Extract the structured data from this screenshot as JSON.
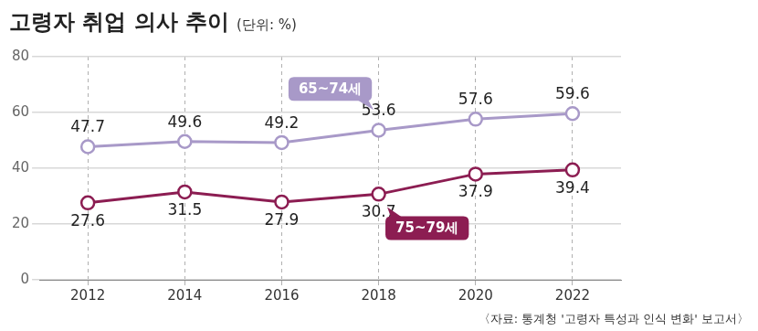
{
  "chart_data": {
    "type": "line",
    "title": "고령자 취업 의사 추이",
    "subtitle": "(단위: %)",
    "source": "〈자료: 통계청 '고령자 특성과 인식 변화' 보고서〉",
    "categories": [
      "2012",
      "2014",
      "2016",
      "2018",
      "2020",
      "2022"
    ],
    "series": [
      {
        "name": "65~74세",
        "color": "#a899c8",
        "values": [
          47.7,
          49.6,
          49.2,
          53.6,
          57.6,
          59.6
        ]
      },
      {
        "name": "75~79세",
        "color": "#8c1d52",
        "values": [
          27.6,
          31.5,
          27.9,
          30.7,
          37.9,
          39.4
        ]
      }
    ],
    "ylim": [
      0,
      80
    ],
    "yticks": [
      0,
      20,
      40,
      60,
      80
    ],
    "grid": true,
    "data_labels": true,
    "marker": "circle"
  }
}
